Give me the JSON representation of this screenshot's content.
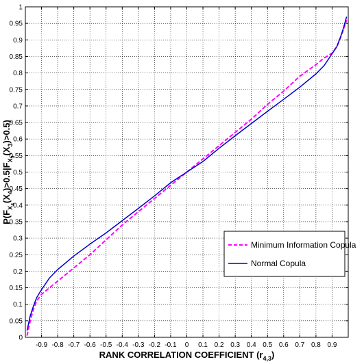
{
  "chart_data": {
    "type": "line",
    "xlabel": "RANK CORRELATION COEFFICIENT (r",
    "xlabel_sub": "4,3",
    "xlabel_close": ")",
    "ylabel_parts": [
      "P(F",
      "X",
      "4",
      "(X",
      "4",
      ")>0.5|F",
      "X",
      "3",
      "(X",
      "3",
      ")>0.5)"
    ],
    "xlim": [
      -1,
      1
    ],
    "ylim": [
      0,
      1
    ],
    "x_ticks": [
      -0.9,
      -0.8,
      -0.7,
      -0.6,
      -0.5,
      -0.4,
      -0.3,
      -0.2,
      -0.1,
      0,
      0.1,
      0.2,
      0.3,
      0.4,
      0.5,
      0.6,
      0.7,
      0.8,
      0.9
    ],
    "x_tick_labels": [
      "-0.9",
      "-0.8",
      "-0.7",
      "-0.6",
      "-0.5",
      "-0.4",
      "-0.3",
      "-0.2",
      "-0.1",
      "0",
      "0.1",
      "0.2",
      "0.3",
      "0.4",
      "0.5",
      "0.6",
      "0.7",
      "0.8",
      "0.9"
    ],
    "y_ticks": [
      0,
      0.05,
      0.1,
      0.15,
      0.2,
      0.25,
      0.3,
      0.35,
      0.4,
      0.45,
      0.5,
      0.55,
      0.6,
      0.65,
      0.7,
      0.75,
      0.8,
      0.85,
      0.9,
      0.95,
      1
    ],
    "y_tick_labels": [
      "0",
      "0.05",
      "0.1",
      "0.15",
      "0.2",
      "0.25",
      "0.3",
      "0.35",
      "0.4",
      "0.45",
      "0.5",
      "0.55",
      "0.6",
      "0.65",
      "0.7",
      "0.75",
      "0.8",
      "0.85",
      "0.9",
      "0.95",
      "1"
    ],
    "grid": true,
    "legend_position": "lower-right",
    "series": [
      {
        "name": "Minimum Information Copula",
        "color": "#ff00ff",
        "style": "dashed",
        "x": [
          -0.99,
          -0.97,
          -0.95,
          -0.93,
          -0.9,
          -0.85,
          -0.8,
          -0.7,
          -0.6,
          -0.5,
          -0.4,
          -0.3,
          -0.2,
          -0.1,
          0,
          0.1,
          0.2,
          0.3,
          0.4,
          0.5,
          0.6,
          0.7,
          0.8,
          0.85,
          0.9,
          0.93,
          0.95,
          0.97,
          0.99
        ],
        "y": [
          0.005,
          0.05,
          0.085,
          0.11,
          0.13,
          0.15,
          0.17,
          0.21,
          0.25,
          0.295,
          0.34,
          0.38,
          0.42,
          0.46,
          0.5,
          0.54,
          0.58,
          0.62,
          0.66,
          0.705,
          0.745,
          0.79,
          0.825,
          0.845,
          0.86,
          0.88,
          0.905,
          0.93,
          0.96
        ]
      },
      {
        "name": "Normal Copula",
        "color": "#0000cc",
        "style": "solid",
        "x": [
          -0.99,
          -0.97,
          -0.95,
          -0.93,
          -0.9,
          -0.85,
          -0.8,
          -0.7,
          -0.6,
          -0.5,
          -0.4,
          -0.3,
          -0.2,
          -0.1,
          0,
          0.1,
          0.2,
          0.3,
          0.4,
          0.5,
          0.6,
          0.7,
          0.8,
          0.85,
          0.9,
          0.93,
          0.95,
          0.97,
          0.99
        ],
        "y": [
          0.02,
          0.065,
          0.095,
          0.12,
          0.144,
          0.18,
          0.205,
          0.246,
          0.282,
          0.316,
          0.353,
          0.39,
          0.428,
          0.468,
          0.5,
          0.532,
          0.572,
          0.61,
          0.647,
          0.684,
          0.72,
          0.757,
          0.797,
          0.822,
          0.858,
          0.88,
          0.905,
          0.935,
          0.97
        ]
      }
    ]
  }
}
